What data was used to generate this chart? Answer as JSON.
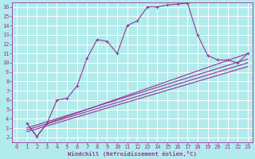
{
  "xlabel": "Windchill (Refroidissement éolien,°C)",
  "bg_color": "#b2ebeb",
  "grid_color": "#ffffff",
  "line_color": "#993399",
  "xlim": [
    -0.5,
    23.5
  ],
  "ylim": [
    1.5,
    16.5
  ],
  "xticks": [
    0,
    1,
    2,
    3,
    4,
    5,
    6,
    7,
    8,
    9,
    10,
    11,
    12,
    13,
    14,
    15,
    16,
    17,
    18,
    19,
    20,
    21,
    22,
    23
  ],
  "yticks": [
    2,
    3,
    4,
    5,
    6,
    7,
    8,
    9,
    10,
    11,
    12,
    13,
    14,
    15,
    16
  ],
  "line1_x": [
    1,
    2,
    3,
    4,
    5,
    6,
    7,
    8,
    9,
    10,
    11,
    12,
    13,
    14,
    15,
    16,
    17,
    18,
    19,
    20,
    21,
    22,
    23
  ],
  "line1_y": [
    3.5,
    2.1,
    3.5,
    6.0,
    6.2,
    7.5,
    10.5,
    12.5,
    12.3,
    11.0,
    14.0,
    14.5,
    16.0,
    16.0,
    16.2,
    16.3,
    16.4,
    13.0,
    10.8,
    10.3,
    10.3,
    10.0,
    11.0
  ],
  "line2_x": [
    1,
    2,
    3,
    23
  ],
  "line2_y": [
    3.5,
    2.1,
    3.5,
    11.0
  ],
  "line3_x": [
    1,
    23
  ],
  "line3_y": [
    3.0,
    10.4
  ],
  "line4_x": [
    1,
    23
  ],
  "line4_y": [
    2.8,
    10.0
  ],
  "line5_x": [
    1,
    23
  ],
  "line5_y": [
    2.6,
    9.6
  ]
}
